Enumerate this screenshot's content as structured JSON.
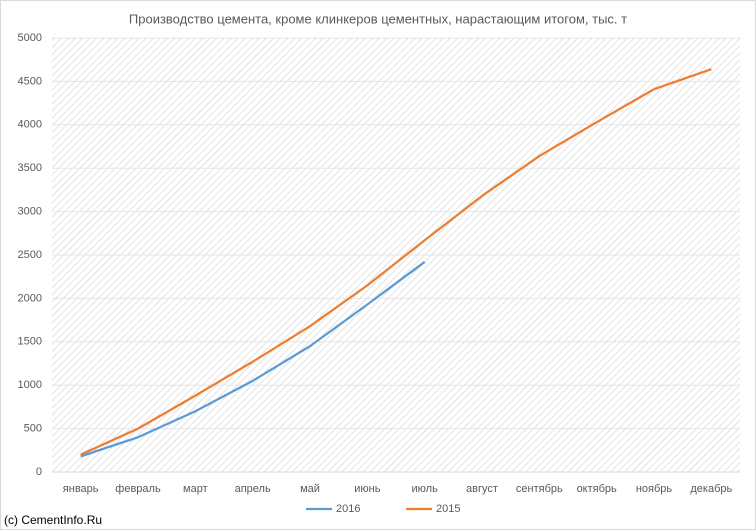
{
  "chart_data": {
    "type": "line",
    "title": "Производство цемента, кроме клинкеров цементных, нарастающим итогом, тыс. т",
    "categories": [
      "январь",
      "февраль",
      "март",
      "апрель",
      "май",
      "июнь",
      "июль",
      "август",
      "сентябрь",
      "октябрь",
      "ноябрь",
      "декабрь"
    ],
    "series": [
      {
        "name": "2016",
        "color": "#5b9bd5",
        "values": [
          180,
          400,
          700,
          1050,
          1450,
          1930,
          2420,
          null,
          null,
          null,
          null,
          null
        ]
      },
      {
        "name": "2015",
        "color": "#ed7d31",
        "values": [
          200,
          500,
          880,
          1270,
          1680,
          2150,
          2670,
          3180,
          3640,
          4030,
          4410,
          4640
        ]
      }
    ],
    "ylim": [
      0,
      5000
    ],
    "yticks": [
      0,
      500,
      1000,
      1500,
      2000,
      2500,
      3000,
      3500,
      4000,
      4500,
      5000
    ],
    "grid": true,
    "legend": "bottom",
    "source": "(c) CementInfo.Ru"
  }
}
